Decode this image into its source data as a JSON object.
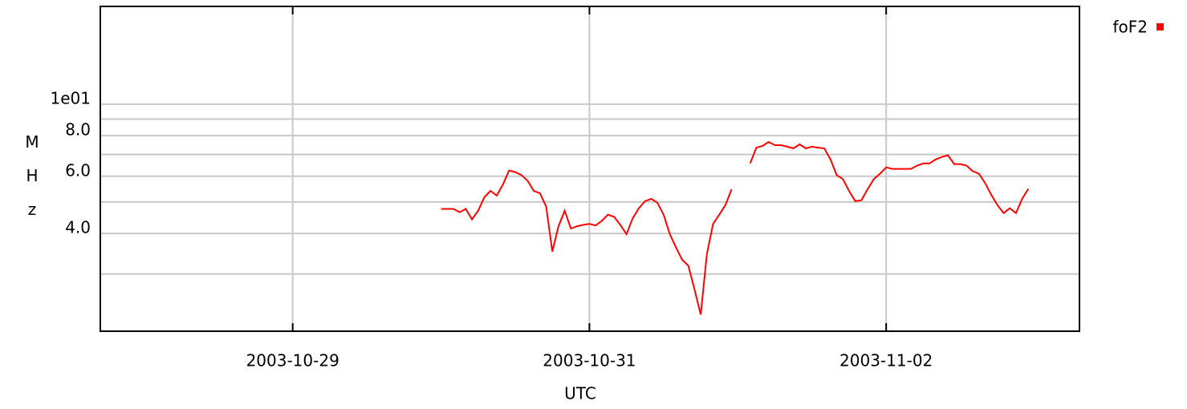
{
  "chart_data": {
    "type": "line",
    "y_label": "MHz",
    "x_label": "UTC",
    "log_y": true,
    "grid": true,
    "legend_position": "top-right",
    "xlim": [
      "2003-10-27T16:53Z",
      "2003-11-03T07:16Z"
    ],
    "xticks": [
      "2003-10-29",
      "2003-10-31",
      "2003-11-02"
    ],
    "ylim": [
      2,
      20
    ],
    "yticks": [
      {
        "value": 10,
        "label": "1e01"
      },
      {
        "value": 8,
        "label": "8.0"
      },
      {
        "value": 6,
        "label": "6.0"
      },
      {
        "value": 4,
        "label": "4.0"
      }
    ],
    "minor_yticks": [
      9,
      7,
      5,
      3
    ],
    "x": [
      "2003-10-30T00:00Z",
      "2003-10-30T02:00Z",
      "2003-10-30T03:00Z",
      "2003-10-30T04:00Z",
      "2003-10-30T05:00Z",
      "2003-10-30T06:00Z",
      "2003-10-30T07:00Z",
      "2003-10-30T08:00Z",
      "2003-10-30T09:00Z",
      "2003-10-30T10:00Z",
      "2003-10-30T11:00Z",
      "2003-10-30T12:00Z",
      "2003-10-30T13:00Z",
      "2003-10-30T14:00Z",
      "2003-10-30T15:00Z",
      "2003-10-30T16:00Z",
      "2003-10-30T17:00Z",
      "2003-10-30T18:00Z",
      "2003-10-30T19:00Z",
      "2003-10-30T20:00Z",
      "2003-10-30T21:00Z",
      "2003-10-30T22:00Z",
      "2003-10-30T23:00Z",
      "2003-10-31T00:00Z",
      "2003-10-31T01:00Z",
      "2003-10-31T02:00Z",
      "2003-10-31T03:00Z",
      "2003-10-31T04:00Z",
      "2003-10-31T05:00Z",
      "2003-10-31T06:00Z",
      "2003-10-31T07:00Z",
      "2003-10-31T08:00Z",
      "2003-10-31T09:00Z",
      "2003-10-31T10:00Z",
      "2003-10-31T11:00Z",
      "2003-10-31T12:00Z",
      "2003-10-31T13:00Z",
      "2003-10-31T14:00Z",
      "2003-10-31T15:00Z",
      "2003-10-31T16:00Z",
      "2003-10-31T17:00Z",
      "2003-10-31T18:00Z",
      "2003-10-31T19:00Z",
      "2003-10-31T20:00Z",
      "2003-10-31T21:00Z",
      "2003-10-31T22:00Z",
      "2003-10-31T23:00Z",
      "2003-11-01T00:00Z",
      "2003-11-01T02:00Z",
      "2003-11-01T03:00Z",
      "2003-11-01T04:00Z",
      "2003-11-01T05:00Z",
      "2003-11-01T06:00Z",
      "2003-11-01T07:00Z",
      "2003-11-01T08:00Z",
      "2003-11-01T09:00Z",
      "2003-11-01T10:00Z",
      "2003-11-01T11:00Z",
      "2003-11-01T12:00Z",
      "2003-11-01T13:00Z",
      "2003-11-01T14:00Z",
      "2003-11-01T15:00Z",
      "2003-11-01T16:00Z",
      "2003-11-01T17:00Z",
      "2003-11-01T18:00Z",
      "2003-11-01T19:00Z",
      "2003-11-01T20:00Z",
      "2003-11-01T21:00Z",
      "2003-11-01T22:00Z",
      "2003-11-01T23:00Z",
      "2003-11-02T00:00Z",
      "2003-11-02T01:00Z",
      "2003-11-02T02:00Z",
      "2003-11-02T03:00Z",
      "2003-11-02T04:00Z",
      "2003-11-02T05:00Z",
      "2003-11-02T06:00Z",
      "2003-11-02T07:00Z",
      "2003-11-02T08:00Z",
      "2003-11-02T09:00Z",
      "2003-11-02T10:00Z",
      "2003-11-02T11:00Z",
      "2003-11-02T12:00Z",
      "2003-11-02T13:00Z",
      "2003-11-02T14:00Z",
      "2003-11-02T15:00Z",
      "2003-11-02T16:00Z",
      "2003-11-02T17:00Z",
      "2003-11-02T18:00Z",
      "2003-11-02T19:00Z",
      "2003-11-02T20:00Z",
      "2003-11-02T21:00Z",
      "2003-11-02T22:00Z",
      "2003-11-02T23:00Z"
    ],
    "series": [
      {
        "name": "foF2",
        "color": "#ff0000",
        "values": [
          4.76,
          4.76,
          4.65,
          4.76,
          4.42,
          4.7,
          5.17,
          5.41,
          5.23,
          5.65,
          6.25,
          6.18,
          6.05,
          5.81,
          5.41,
          5.32,
          4.84,
          3.52,
          4.21,
          4.7,
          4.14,
          4.21,
          4.25,
          4.28,
          4.23,
          4.37,
          4.57,
          4.5,
          4.25,
          3.98,
          4.45,
          4.78,
          5.03,
          5.11,
          4.97,
          4.57,
          3.98,
          3.62,
          3.32,
          3.18,
          2.69,
          2.25,
          3.46,
          4.28,
          4.57,
          4.89,
          5.47,
          null,
          6.57,
          7.35,
          7.44,
          7.65,
          7.48,
          7.48,
          7.4,
          7.31,
          7.52,
          7.31,
          7.4,
          7.35,
          7.31,
          6.76,
          6.05,
          5.88,
          5.41,
          5.03,
          5.06,
          5.47,
          5.88,
          6.11,
          6.39,
          6.32,
          6.32,
          6.32,
          6.32,
          6.47,
          6.57,
          6.57,
          6.76,
          6.88,
          6.96,
          6.54,
          6.54,
          6.47,
          6.22,
          6.11,
          5.72,
          5.26,
          4.89,
          4.62,
          4.78,
          4.62,
          5.11,
          5.49
        ]
      }
    ]
  }
}
